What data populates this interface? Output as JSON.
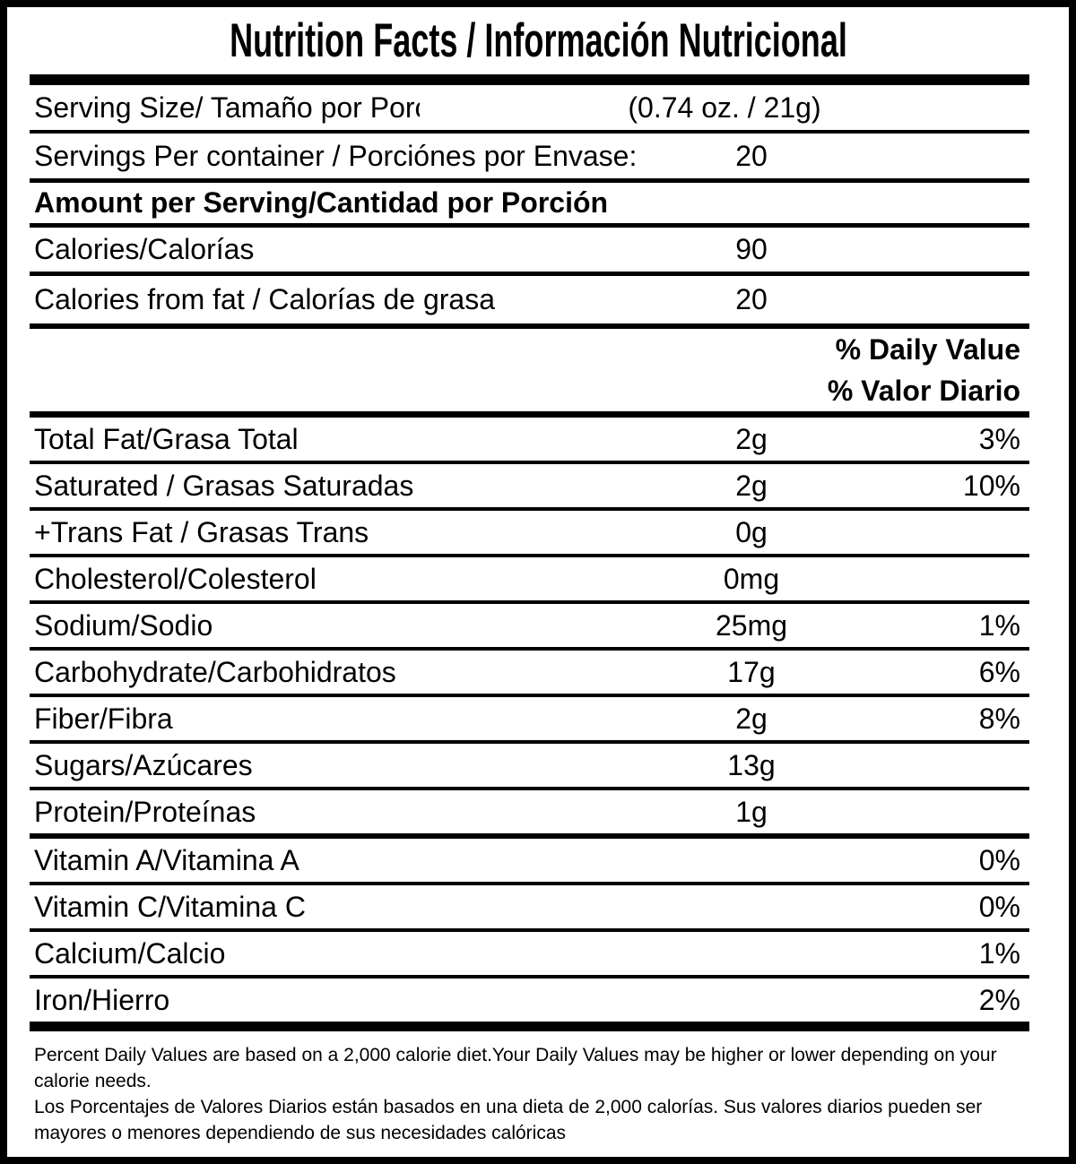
{
  "title": "Nutrition Facts / Información Nutricional",
  "serving": {
    "size_label": "Serving Size/ Tamaño por Porción",
    "size_value": "(0.74 oz. / 21g)",
    "per_container_label": "Servings Per container / Porciónes por Envase:",
    "per_container_value": "20"
  },
  "amount_header": "Amount per Serving/Cantidad por Porción",
  "calories": {
    "label": "Calories/Calorías",
    "value": "90"
  },
  "calories_from_fat": {
    "label": "Calories from fat / Calorías de grasa",
    "value": "20"
  },
  "daily_value_header": {
    "line1": "% Daily Value",
    "line2": "% Valor Diario"
  },
  "nutrients": [
    {
      "label": "Total Fat/Grasa Total",
      "amount": "2g",
      "percent": "3%"
    },
    {
      "label": "Saturated / Grasas Saturadas",
      "amount": "2g",
      "percent": "10%"
    },
    {
      "label": "+Trans Fat / Grasas Trans",
      "amount": "0g",
      "percent": ""
    },
    {
      "label": "Cholesterol/Colesterol",
      "amount": "0mg",
      "percent": ""
    },
    {
      "label": "Sodium/Sodio",
      "amount": "25mg",
      "percent": "1%"
    },
    {
      "label": "Carbohydrate/Carbohidratos",
      "amount": "17g",
      "percent": "6%"
    },
    {
      "label": "Fiber/Fibra",
      "amount": "2g",
      "percent": "8%"
    },
    {
      "label": "Sugars/Azúcares",
      "amount": "13g",
      "percent": ""
    },
    {
      "label": "Protein/Proteínas",
      "amount": "1g",
      "percent": ""
    }
  ],
  "micronutrients": [
    {
      "label": "Vitamin A/Vitamina A",
      "percent": "0%"
    },
    {
      "label": "Vitamin C/Vitamina C",
      "percent": "0%"
    },
    {
      "label": "Calcium/Calcio",
      "percent": "1%"
    },
    {
      "label": "Iron/Hierro",
      "percent": "2%"
    }
  ],
  "footnote": {
    "english": "Percent Daily Values are based on a 2,000 calorie diet.Your Daily Values may be higher or lower depending on your calorie needs.",
    "spanish": "Los Porcentajes de Valores Diarios están basados en una dieta de 2,000 calorías. Sus valores diarios pueden ser mayores o menores dependiendo de sus necesidades calóricas"
  },
  "colors": {
    "text": "#000000",
    "background": "#ffffff",
    "border": "#000000"
  }
}
